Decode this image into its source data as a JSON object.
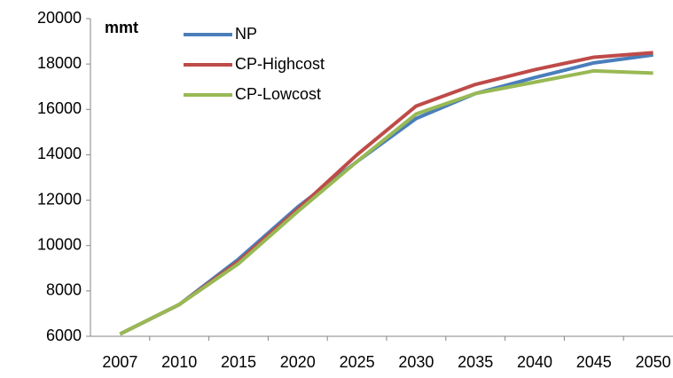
{
  "chart_data": {
    "type": "line",
    "ylabel": "mmt",
    "categories": [
      "2007",
      "2010",
      "2015",
      "2020",
      "2025",
      "2030",
      "2035",
      "2040",
      "2045",
      "2050"
    ],
    "series": [
      {
        "name": "NP",
        "color": "#4a7ebb",
        "values": [
          6100,
          7400,
          9400,
          11700,
          13700,
          15600,
          16700,
          17400,
          18050,
          18400
        ]
      },
      {
        "name": "CP-Highcost",
        "color": "#be4b48",
        "values": [
          6100,
          7400,
          9300,
          11600,
          14000,
          16150,
          17100,
          17750,
          18300,
          18500
        ]
      },
      {
        "name": "CP-Lowcost",
        "color": "#98b954",
        "values": [
          6100,
          7400,
          9200,
          11500,
          13700,
          15800,
          16700,
          17200,
          17700,
          17600
        ]
      }
    ],
    "ylim": [
      6000,
      20000
    ],
    "yticks": [
      6000,
      8000,
      10000,
      12000,
      14000,
      16000,
      18000,
      20000
    ],
    "grid": false,
    "legend": "top-left"
  }
}
